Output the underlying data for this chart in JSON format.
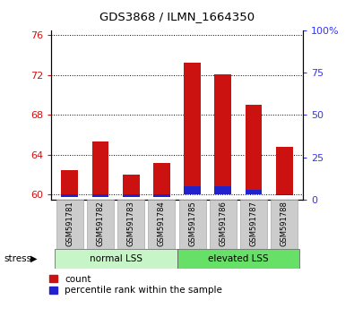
{
  "title": "GDS3868 / ILMN_1664350",
  "samples": [
    "GSM591781",
    "GSM591782",
    "GSM591783",
    "GSM591784",
    "GSM591785",
    "GSM591786",
    "GSM591787",
    "GSM591788"
  ],
  "count_values": [
    62.5,
    65.3,
    62.0,
    63.2,
    73.2,
    72.1,
    69.0,
    64.8
  ],
  "percentile_values": [
    1.5,
    1.5,
    1.5,
    1.5,
    8.0,
    8.0,
    6.0,
    2.5
  ],
  "ylim_left": [
    59.5,
    76.5
  ],
  "ylim_right": [
    0,
    100
  ],
  "yticks_left": [
    60,
    64,
    68,
    72,
    76
  ],
  "yticks_right": [
    0,
    25,
    50,
    75,
    100
  ],
  "groups": [
    {
      "label": "normal LSS",
      "start": 0,
      "end": 4,
      "color": "#c8f5c8"
    },
    {
      "label": "elevated LSS",
      "start": 4,
      "end": 8,
      "color": "#66e066"
    }
  ],
  "bar_color_red": "#cc1111",
  "bar_color_blue": "#2222cc",
  "bar_width": 0.55,
  "background_color": "#ffffff",
  "label_color_left": "#cc1111",
  "label_color_right": "#3333ff",
  "tick_label_area_color": "#cccccc",
  "stress_arrow_label": "stress",
  "legend_count": "count",
  "legend_percentile": "percentile rank within the sample"
}
